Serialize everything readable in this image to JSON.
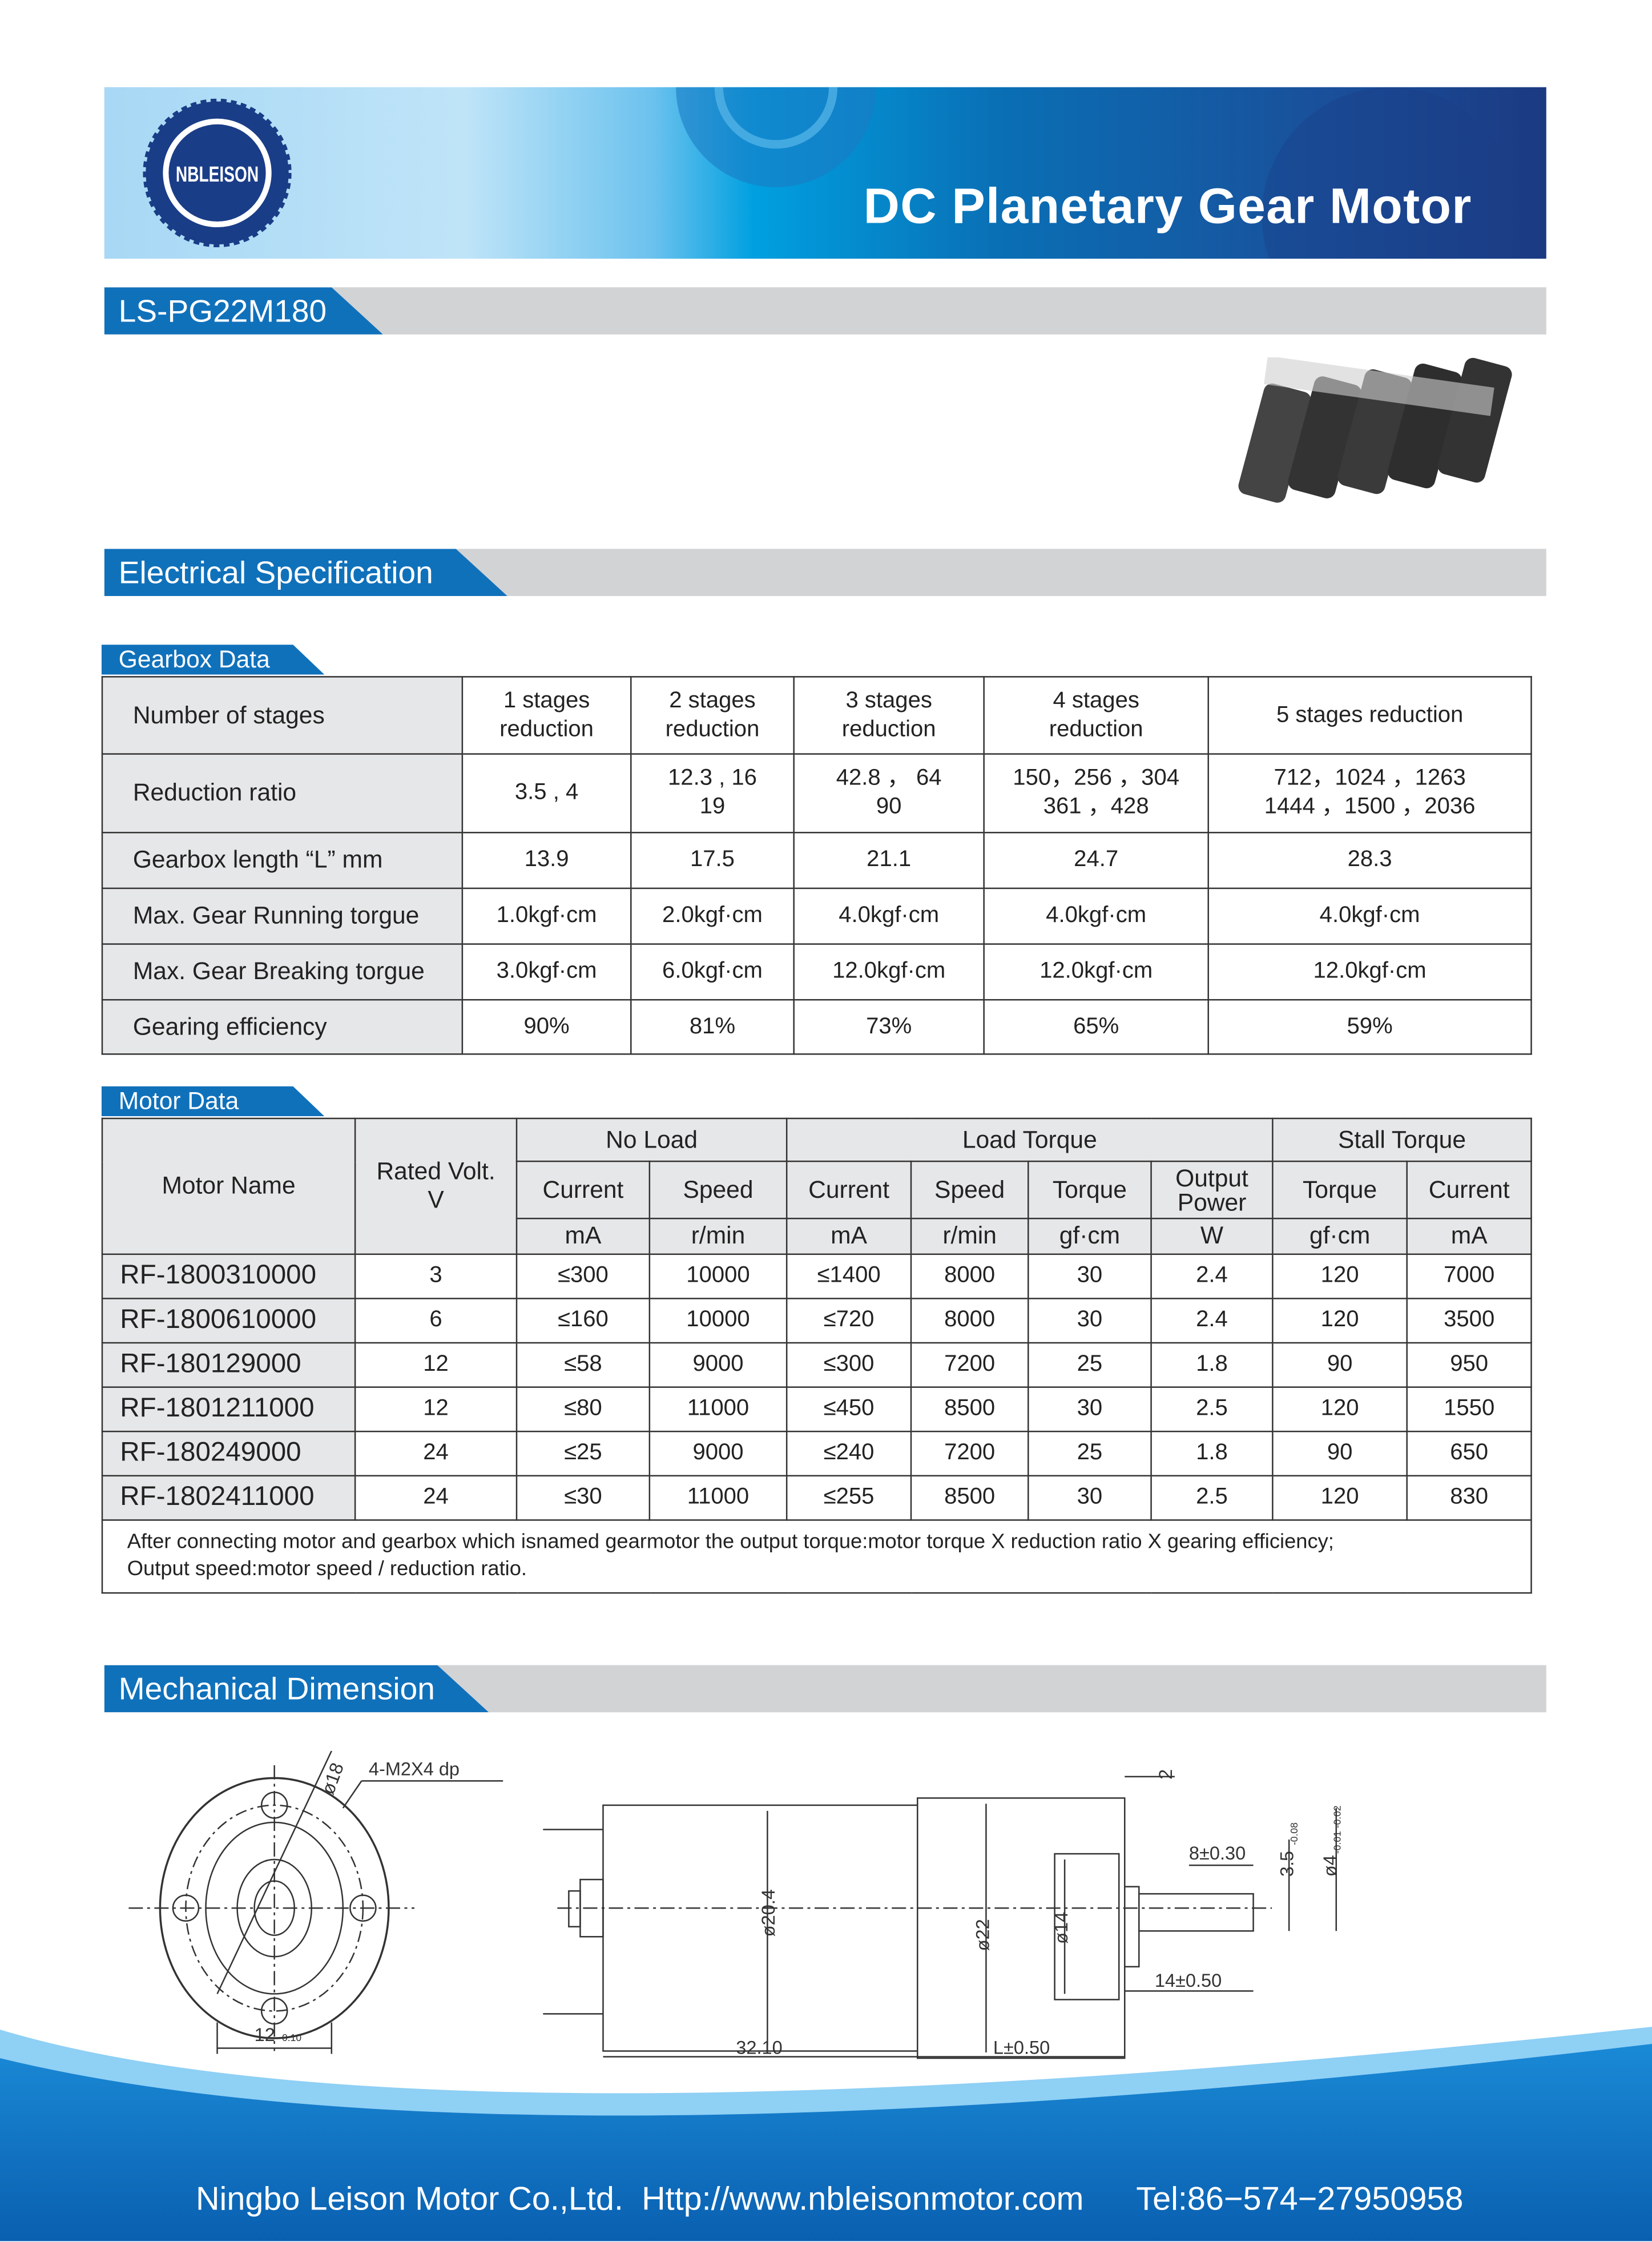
{
  "header": {
    "logo_text": "NBLEISON",
    "title": "DC Planetary Gear Motor",
    "colors": {
      "primary": "#1071bb",
      "bar": "#d2d3d5"
    }
  },
  "model": "LS-PG22M180",
  "product_image": "gear-motors-photo",
  "sections": {
    "electrical": "Electrical Specification",
    "gearbox_tag": "Gearbox Data",
    "motor_tag": "Motor Data",
    "mechanical": "Mechanical Dimension"
  },
  "gearbox": {
    "header": [
      "Number of stages",
      "1 stages reduction",
      "2 stages reduction",
      "3 stages reduction",
      "4 stages reduction",
      "5 stages reduction"
    ],
    "rows": [
      {
        "label": "Reduction ratio",
        "values": [
          "3.5 , 4",
          "12.3 , 16\n19",
          "42.8 ， 64\n90",
          "150，256 ，304\n361 ，428",
          "712，1024 ，1263\n1444 ，1500 ，2036"
        ]
      },
      {
        "label": "Gearbox length “L” mm",
        "values": [
          "13.9",
          "17.5",
          "21.1",
          "24.7",
          "28.3"
        ]
      },
      {
        "label": "Max. Gear Running torgue",
        "values": [
          "1.0kgf·cm",
          "2.0kgf·cm",
          "4.0kgf·cm",
          "4.0kgf·cm",
          "4.0kgf·cm"
        ]
      },
      {
        "label": "Max. Gear Breaking torgue",
        "values": [
          "3.0kgf·cm",
          "6.0kgf·cm",
          "12.0kgf·cm",
          "12.0kgf·cm",
          "12.0kgf·cm"
        ]
      },
      {
        "label": "Gearing efficiency",
        "values": [
          "90%",
          "81%",
          "73%",
          "65%",
          "59%"
        ]
      }
    ]
  },
  "motor": {
    "h_motor_name": "Motor Name",
    "h_rated": "Rated Volt.\nV",
    "groups": [
      "No Load",
      "Load Torque",
      "Stall Torque"
    ],
    "cols": [
      "Current",
      "Speed",
      "Current",
      "Speed",
      "Torque",
      "Output Power",
      "Torque",
      "Current"
    ],
    "units": [
      "mA",
      "r/min",
      "mA",
      "r/min",
      "gf·cm",
      "W",
      "gf·cm",
      "mA"
    ],
    "rows": [
      [
        "RF-1800310000",
        "3",
        "≤300",
        "10000",
        "≤1400",
        "8000",
        "30",
        "2.4",
        "120",
        "7000"
      ],
      [
        "RF-1800610000",
        "6",
        "≤160",
        "10000",
        "≤720",
        "8000",
        "30",
        "2.4",
        "120",
        "3500"
      ],
      [
        "RF-180129000",
        "12",
        "≤58",
        "9000",
        "≤300",
        "7200",
        "25",
        "1.8",
        "90",
        "950"
      ],
      [
        "RF-1801211000",
        "12",
        "≤80",
        "11000",
        "≤450",
        "8500",
        "30",
        "2.5",
        "120",
        "1550"
      ],
      [
        "RF-180249000",
        "24",
        "≤25",
        "9000",
        "≤240",
        "7200",
        "25",
        "1.8",
        "90",
        "650"
      ],
      [
        "RF-1802411000",
        "24",
        "≤30",
        "11000",
        "≤255",
        "8500",
        "30",
        "2.5",
        "120",
        "830"
      ]
    ],
    "note_1": "After connecting motor and gearbox which isnamed gearmotor the output torque:motor torque X reduction ratio X gearing efficiency;",
    "note_2": "Output speed:motor speed / reduction ratio."
  },
  "drawing": {
    "d18": "ø18",
    "holes": "4-M2X4 dp",
    "w12": "12",
    "tol_010": "-0.10",
    "d204": "ø20.4",
    "d22": "ø22",
    "d14": "ø14",
    "l3210": "32.10",
    "lL": "L±0.50",
    "l2": "2",
    "l8": "8±0.30",
    "l14": "14±0.50",
    "d35": "3.5",
    "tol_008": "-0.08",
    "d4": "ø4",
    "tol_4": "-0.01 -0.02",
    "zero": "0"
  },
  "footer": {
    "company": "Ningbo Leison Motor Co.,Ltd.",
    "website": "Http://www.nbleisonmotor.com",
    "tel": "Tel:86−574−27950958"
  }
}
